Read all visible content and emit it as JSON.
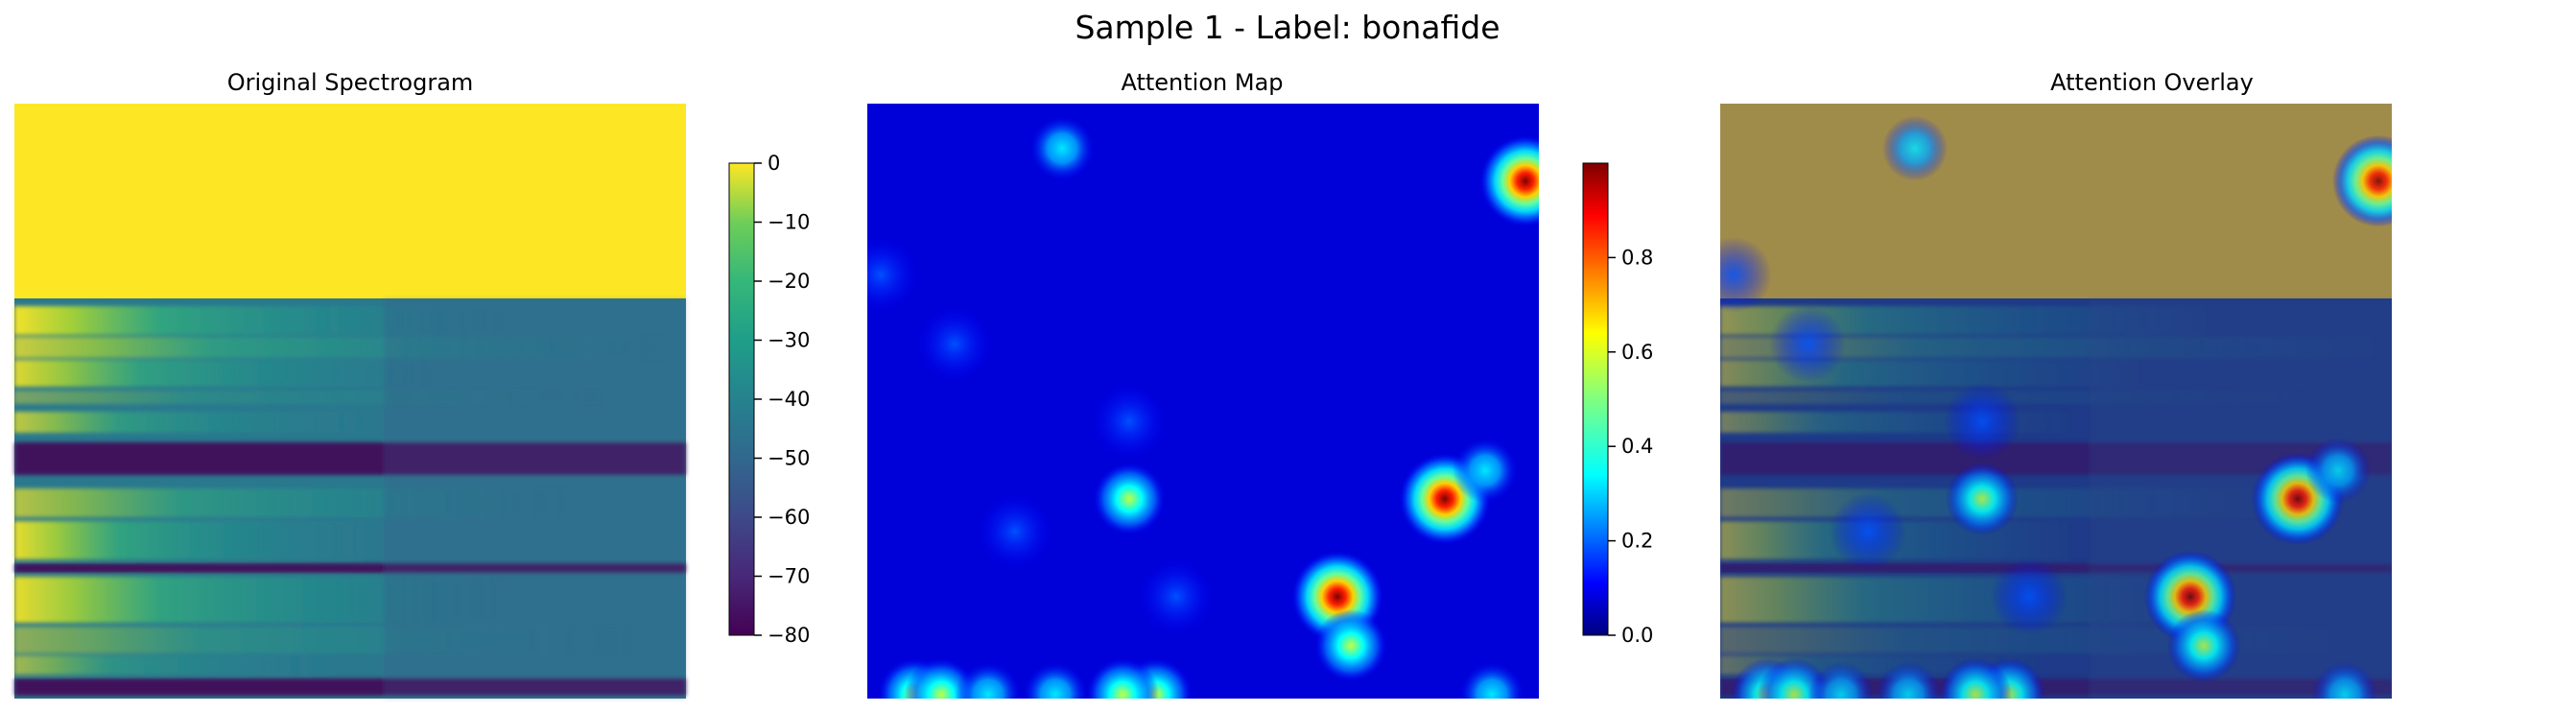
{
  "figure": {
    "suptitle": "Sample 1 - Label: bonafide"
  },
  "colors": {
    "spectrogram_cmap": "viridis",
    "attention_cmap": "jet",
    "background": "#ffffff"
  },
  "chart_data": [
    {
      "type": "heatmap",
      "title": "Original Spectrogram",
      "cmap": "viridis",
      "axes_visible": false,
      "colorbar": {
        "vmin": -80,
        "vmax": 0,
        "ticks": [
          0,
          -10,
          -20,
          -30,
          -40,
          -50,
          -60,
          -70,
          -80
        ],
        "tick_labels": [
          "0",
          "−10",
          "−20",
          "−30",
          "−40",
          "−50",
          "−60",
          "−70",
          "−80"
        ]
      },
      "regions": [
        {
          "rows_fraction": [
            0,
            0.49
          ],
          "value": 0
        },
        {
          "rows_fraction": [
            0.49,
            1.0
          ],
          "value_range": [
            -80,
            -15
          ]
        }
      ]
    },
    {
      "type": "heatmap",
      "title": "Attention Map",
      "cmap": "jet",
      "axes_visible": false,
      "background_value": 0.02,
      "colorbar": {
        "vmin": 0,
        "vmax": 1,
        "ticks": [
          0.0,
          0.2,
          0.4,
          0.6,
          0.8
        ],
        "tick_labels": [
          "0.0",
          "0.2",
          "0.4",
          "0.6",
          "0.8"
        ]
      },
      "hotspots": [
        {
          "x": 0.98,
          "y": 0.19,
          "value": 0.98
        },
        {
          "x": 0.86,
          "y": 0.97,
          "value": 0.95
        },
        {
          "x": 0.7,
          "y": 1.21,
          "value": 0.97
        },
        {
          "x": 0.39,
          "y": 0.97,
          "value": 0.6
        },
        {
          "x": 0.92,
          "y": 0.9,
          "value": 0.25
        },
        {
          "x": 0.72,
          "y": 1.33,
          "value": 0.42
        },
        {
          "x": 0.07,
          "y": 1.45,
          "value": 0.45
        },
        {
          "x": 0.11,
          "y": 1.45,
          "value": 0.45
        },
        {
          "x": 0.43,
          "y": 1.45,
          "value": 0.45
        },
        {
          "x": 0.38,
          "y": 1.45,
          "value": 0.42
        },
        {
          "x": 0.28,
          "y": 1.45,
          "value": 0.35
        },
        {
          "x": 0.18,
          "y": 1.45,
          "value": 0.3
        },
        {
          "x": 0.93,
          "y": 1.45,
          "value": 0.25
        },
        {
          "x": 0.29,
          "y": 0.11,
          "value": 0.3
        },
        {
          "x": 0.13,
          "y": 0.59,
          "value": 0.2
        },
        {
          "x": 0.02,
          "y": 0.42,
          "value": 0.15
        },
        {
          "x": 0.39,
          "y": 0.78,
          "value": 0.15
        },
        {
          "x": 0.22,
          "y": 1.05,
          "value": 0.15
        },
        {
          "x": 0.46,
          "y": 1.21,
          "value": 0.15
        }
      ],
      "extent": {
        "x": [
          0,
          1
        ],
        "y": [
          0,
          1.46
        ]
      }
    },
    {
      "type": "heatmap",
      "title": "Attention Overlay",
      "composite_of": [
        "Original Spectrogram",
        "Attention Map"
      ],
      "overlay_alpha": 0.5,
      "axes_visible": false
    }
  ]
}
